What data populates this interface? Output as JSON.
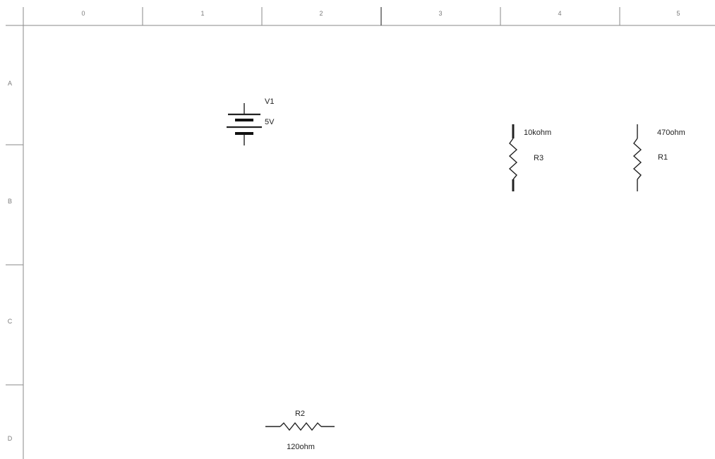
{
  "grid": {
    "columns": [
      "0",
      "1",
      "2",
      "3",
      "4",
      "5"
    ],
    "rows": [
      "A",
      "B",
      "C",
      "D"
    ]
  },
  "components": {
    "v1": {
      "ref": "V1",
      "value": "5V"
    },
    "r3": {
      "ref": "R3",
      "value": "10kohm"
    },
    "r1": {
      "ref": "R1",
      "value": "470ohm"
    },
    "r2": {
      "ref": "R2",
      "value": "120ohm"
    }
  }
}
